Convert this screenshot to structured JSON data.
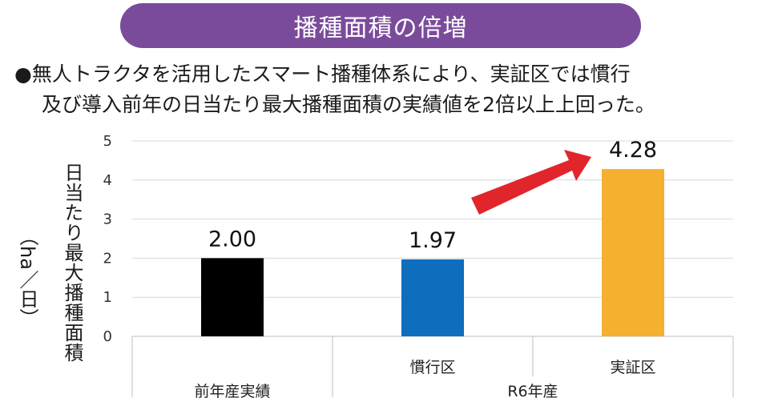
{
  "title": "播種面積の倍増",
  "description": {
    "line1": "●無人トラクタを活用したスマート播種体系により、実証区では慣行",
    "line2": "及び導入前年の日当たり最大播種面積の実績値を2倍以上上回った。"
  },
  "chart_data": {
    "type": "bar",
    "categories": [
      "前年産実績",
      "慣行区",
      "実証区"
    ],
    "category_groups": [
      {
        "label": "",
        "categories": [
          "前年産実績"
        ]
      },
      {
        "label": "R6年産",
        "categories": [
          "慣行区",
          "実証区"
        ]
      }
    ],
    "values": [
      2.0,
      1.97,
      4.28
    ],
    "data_labels": [
      "2.00",
      "1.97",
      "4.28"
    ],
    "bar_colors": [
      "#000000",
      "#0e6dbd",
      "#f4b02e"
    ],
    "ylabel": "日当たり最大播種面積",
    "yunit": "（ha／日）",
    "ylim": [
      0,
      5
    ],
    "yticks": [
      "0",
      "1",
      "2",
      "3",
      "4",
      "5"
    ],
    "grid": true,
    "annotation": {
      "type": "arrow",
      "color": "#e0262b"
    }
  }
}
